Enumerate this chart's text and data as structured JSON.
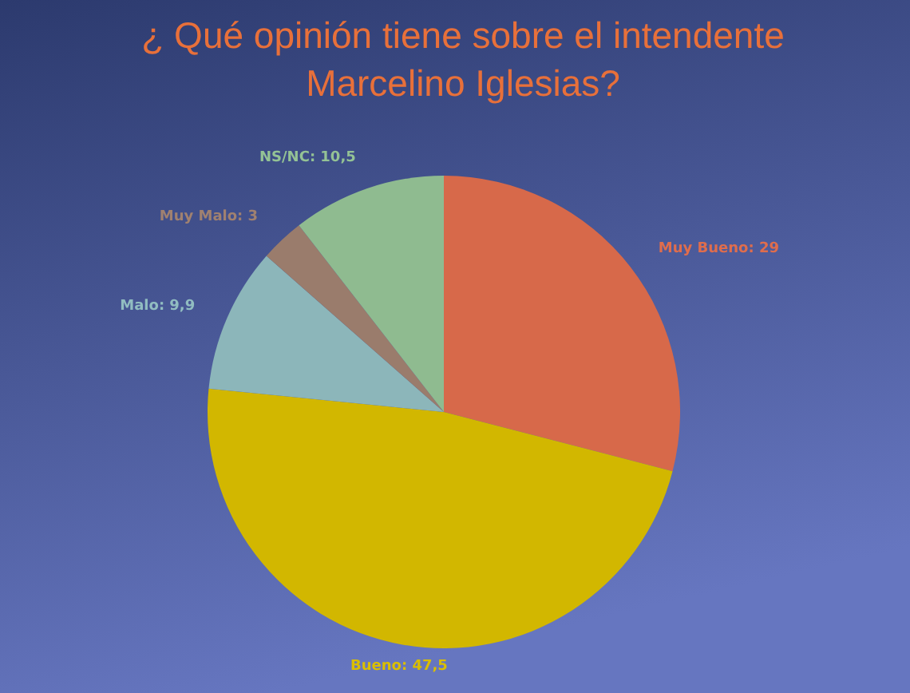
{
  "chart_data": {
    "type": "pie",
    "title": "¿ Qué opinión tiene sobre el intendente Marcelino Iglesias?",
    "categories": [
      "Muy Bueno",
      "Bueno",
      "Malo",
      "Muy Malo",
      "NS/NC"
    ],
    "values": [
      29,
      47.5,
      9.9,
      3,
      10.5
    ],
    "colors": [
      "#d7694a",
      "#d2b700",
      "#8cb6ba",
      "#9a7c6c",
      "#8fbb90"
    ],
    "value_labels": [
      "29",
      "47,5",
      "9,9",
      "3",
      "10,5"
    ]
  }
}
